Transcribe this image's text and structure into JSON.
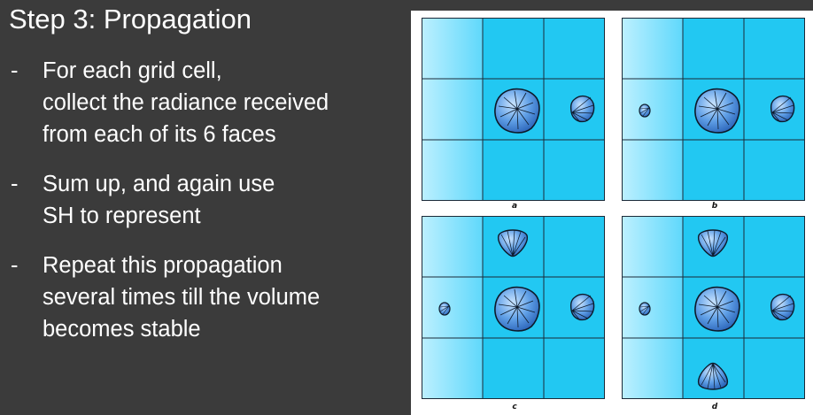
{
  "slide": {
    "title": "Step 3: Propagation",
    "bullets": [
      {
        "dash": "-",
        "lines": [
          "For each grid cell,",
          "collect the radiance received",
          "from each of its 6 faces"
        ]
      },
      {
        "dash": "-",
        "lines": [
          "Sum up, and again use",
          "SH to represent"
        ]
      },
      {
        "dash": "-",
        "lines": [
          "Repeat this propagation",
          "several times till the volume",
          "becomes stable"
        ]
      }
    ]
  },
  "figure": {
    "panels": [
      {
        "caption": "a"
      },
      {
        "caption": "b"
      },
      {
        "caption": "c"
      },
      {
        "caption": "d"
      }
    ],
    "colors": {
      "cell_light": "#9fe6ff",
      "cell": "#22c8f2",
      "grid_line": "#1b2a38",
      "lobe": "#3d86d8"
    }
  }
}
